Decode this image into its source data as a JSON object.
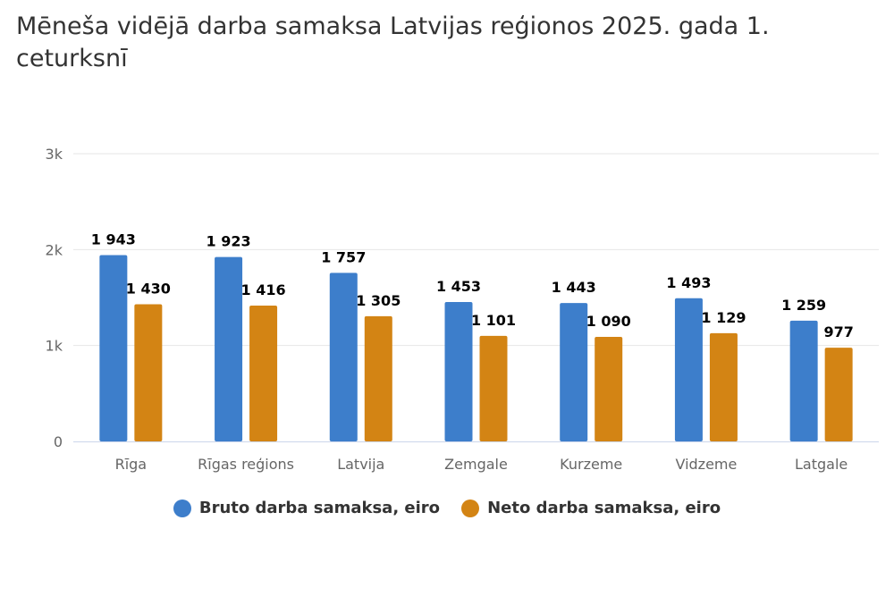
{
  "title": "Mēneša vidējā darba samaksa Latvijas reģionos 2025. gada 1. ceturksnī",
  "chart_data": {
    "type": "bar",
    "title": "Mēneša vidējā darba samaksa Latvijas reģionos 2025. gada 1. ceturksnī",
    "xlabel": "",
    "ylabel": "",
    "categories": [
      "Rīga",
      "Rīgas reģions",
      "Latvija",
      "Zemgale",
      "Kurzeme",
      "Vidzeme",
      "Latgale"
    ],
    "series": [
      {
        "name": "Bruto darba samaksa, eiro",
        "values": [
          1943,
          1923,
          1757,
          1453,
          1443,
          1493,
          1259
        ],
        "labels": [
          "1 943",
          "1 923",
          "1 757",
          "1 453",
          "1 443",
          "1 493",
          "1 259"
        ],
        "color": "#3d7ecb"
      },
      {
        "name": "Neto darba samaksa, eiro",
        "values": [
          1430,
          1416,
          1305,
          1101,
          1090,
          1129,
          977
        ],
        "labels": [
          "1 430",
          "1 416",
          "1 305",
          "1 101",
          "1 090",
          "1 129",
          "977"
        ],
        "color": "#d38414"
      }
    ],
    "ylim": [
      0,
      3000
    ],
    "yticks": [
      0,
      1000,
      2000,
      3000
    ],
    "ytick_labels": [
      "0",
      "1k",
      "2k",
      "3k"
    ],
    "grid": true,
    "legend_position": "bottom-center"
  }
}
